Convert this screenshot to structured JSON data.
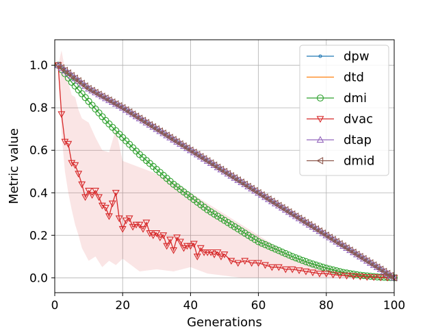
{
  "chart_data": {
    "type": "line",
    "title": "",
    "xlabel": "Generations",
    "ylabel": "Metric value",
    "xlim": [
      0,
      100
    ],
    "ylim": [
      -0.07,
      1.12
    ],
    "xticks": [
      0,
      20,
      40,
      60,
      80,
      100
    ],
    "yticks": [
      0.0,
      0.2,
      0.4,
      0.6,
      0.8,
      1.0
    ],
    "xtick_labels": [
      "0",
      "20",
      "40",
      "60",
      "80",
      "100"
    ],
    "ytick_labels": [
      "0.0",
      "0.2",
      "0.4",
      "0.6",
      "0.8",
      "1.0"
    ],
    "grid": true,
    "legend_position": "top-right",
    "series": [
      {
        "name": "dpw",
        "color": "#1f77b4",
        "marker": "point",
        "x": [
          1,
          10,
          20,
          30,
          40,
          50,
          60,
          70,
          80,
          90,
          100
        ],
        "y": [
          1.0,
          0.89,
          0.8,
          0.7,
          0.6,
          0.5,
          0.4,
          0.3,
          0.2,
          0.1,
          0.0
        ]
      },
      {
        "name": "dtd",
        "color": "#ff7f0e",
        "marker": "none",
        "x": [
          1,
          10,
          20,
          30,
          40,
          50,
          60,
          70,
          80,
          90,
          100
        ],
        "y": [
          1.0,
          0.89,
          0.8,
          0.7,
          0.6,
          0.5,
          0.4,
          0.3,
          0.2,
          0.1,
          0.0
        ]
      },
      {
        "name": "dmi",
        "color": "#2ca02c",
        "marker": "circle",
        "x": [
          1,
          5,
          10,
          15,
          20,
          25,
          30,
          35,
          40,
          45,
          50,
          55,
          60,
          65,
          70,
          75,
          80,
          85,
          90,
          95,
          100
        ],
        "y": [
          1.0,
          0.92,
          0.83,
          0.74,
          0.66,
          0.58,
          0.51,
          0.44,
          0.38,
          0.32,
          0.27,
          0.22,
          0.17,
          0.135,
          0.1,
          0.07,
          0.045,
          0.025,
          0.012,
          0.004,
          0.0
        ]
      },
      {
        "name": "dvac",
        "color": "#d62728",
        "marker": "triangle-down",
        "x": [
          1,
          2,
          3,
          4,
          5,
          6,
          7,
          8,
          9,
          10,
          11,
          12,
          13,
          14,
          15,
          16,
          17,
          18,
          19,
          20,
          21,
          22,
          23,
          24,
          25,
          26,
          27,
          28,
          29,
          30,
          31,
          32,
          33,
          34,
          35,
          36,
          37,
          38,
          39,
          40,
          41,
          42,
          43,
          44,
          45,
          46,
          47,
          48,
          49,
          50,
          52,
          54,
          56,
          58,
          60,
          62,
          64,
          66,
          68,
          70,
          72,
          74,
          76,
          78,
          80,
          82,
          84,
          86,
          88,
          90,
          92,
          94,
          96,
          98,
          100
        ],
        "y": [
          1.0,
          0.77,
          0.64,
          0.63,
          0.54,
          0.53,
          0.49,
          0.44,
          0.38,
          0.41,
          0.39,
          0.41,
          0.38,
          0.34,
          0.33,
          0.29,
          0.35,
          0.4,
          0.28,
          0.23,
          0.27,
          0.28,
          0.24,
          0.25,
          0.25,
          0.23,
          0.26,
          0.21,
          0.2,
          0.21,
          0.19,
          0.2,
          0.15,
          0.18,
          0.13,
          0.19,
          0.17,
          0.14,
          0.15,
          0.15,
          0.16,
          0.1,
          0.14,
          0.12,
          0.12,
          0.12,
          0.11,
          0.12,
          0.1,
          0.11,
          0.08,
          0.07,
          0.08,
          0.07,
          0.07,
          0.06,
          0.05,
          0.05,
          0.04,
          0.04,
          0.035,
          0.03,
          0.025,
          0.02,
          0.02,
          0.015,
          0.012,
          0.01,
          0.008,
          0.006,
          0.004,
          0.003,
          0.002,
          0.001,
          0.0
        ]
      },
      {
        "name": "dtap",
        "color": "#9467bd",
        "marker": "triangle-up",
        "x": [
          1,
          10,
          20,
          30,
          40,
          50,
          60,
          70,
          80,
          90,
          100
        ],
        "y": [
          1.0,
          0.89,
          0.8,
          0.7,
          0.6,
          0.5,
          0.4,
          0.3,
          0.2,
          0.1,
          0.0
        ]
      },
      {
        "name": "dmid",
        "color": "#8c564b",
        "marker": "triangle-left",
        "x": [
          1,
          10,
          20,
          30,
          40,
          50,
          60,
          70,
          80,
          90,
          100
        ],
        "y": [
          1.0,
          0.89,
          0.8,
          0.7,
          0.6,
          0.5,
          0.4,
          0.3,
          0.2,
          0.1,
          0.0
        ]
      }
    ],
    "band": {
      "series": "dvac",
      "color": "#d62728",
      "x": [
        1,
        2,
        3,
        4,
        5,
        6,
        7,
        8,
        10,
        12,
        14,
        16,
        18,
        20,
        25,
        30,
        35,
        40,
        45,
        50,
        55,
        60,
        65,
        70,
        80,
        90,
        100
      ],
      "lower": [
        1.0,
        0.68,
        0.5,
        0.4,
        0.32,
        0.25,
        0.2,
        0.14,
        0.08,
        0.1,
        0.05,
        0.08,
        0.06,
        0.09,
        0.03,
        0.04,
        0.03,
        0.05,
        0.02,
        0.01,
        0.0,
        0.0,
        0.0,
        0.0,
        0.0,
        0.0,
        0.0
      ],
      "upper": [
        1.0,
        1.07,
        0.98,
        0.92,
        0.86,
        0.85,
        0.79,
        0.75,
        0.73,
        0.66,
        0.6,
        0.59,
        0.7,
        0.55,
        0.52,
        0.49,
        0.45,
        0.4,
        0.35,
        0.3,
        0.25,
        0.2,
        0.15,
        0.1,
        0.05,
        0.02,
        0.0
      ]
    }
  }
}
